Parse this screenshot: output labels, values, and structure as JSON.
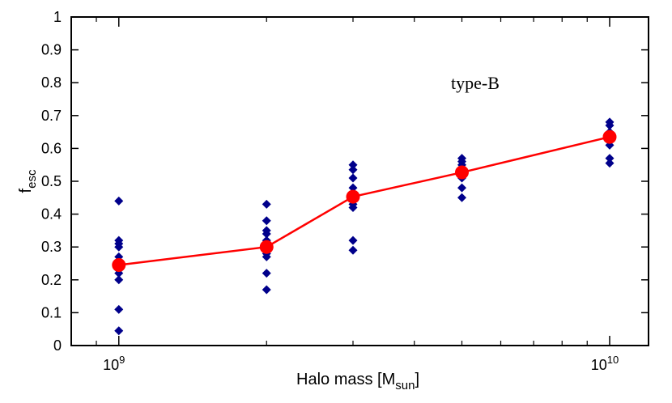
{
  "chart_data": {
    "type": "scatter",
    "title": "",
    "annotation": "type-B",
    "xlabel": {
      "main": "Halo mass [M",
      "sub": "sun",
      "close": "]"
    },
    "ylabel": {
      "main": "f",
      "sub": "esc"
    },
    "xscale": "log",
    "xlim": [
      800000000,
      12000000000
    ],
    "ylim": [
      0,
      1
    ],
    "x_ticks": [
      {
        "value": 1000000000,
        "base": "10",
        "exp": "9"
      },
      {
        "value": 10000000000,
        "base": "10",
        "exp": "10"
      }
    ],
    "y_ticks": [
      {
        "value": 0,
        "label": "0"
      },
      {
        "value": 0.1,
        "label": "0.1"
      },
      {
        "value": 0.2,
        "label": "0.2"
      },
      {
        "value": 0.3,
        "label": "0.3"
      },
      {
        "value": 0.4,
        "label": "0.4"
      },
      {
        "value": 0.5,
        "label": "0.5"
      },
      {
        "value": 0.6,
        "label": "0.6"
      },
      {
        "value": 0.7,
        "label": "0.7"
      },
      {
        "value": 0.8,
        "label": "0.8"
      },
      {
        "value": 0.9,
        "label": "0.9"
      },
      {
        "value": 1,
        "label": "1"
      }
    ],
    "grid": false,
    "legend": "none",
    "series": [
      {
        "kind": "individual",
        "marker": "diamond",
        "color": "#00008b",
        "points": [
          [
            1000000000,
            0.44
          ],
          [
            1000000000,
            0.32
          ],
          [
            1000000000,
            0.31
          ],
          [
            1000000000,
            0.3
          ],
          [
            1000000000,
            0.27
          ],
          [
            1000000000,
            0.25
          ],
          [
            1000000000,
            0.23
          ],
          [
            1000000000,
            0.22
          ],
          [
            1000000000,
            0.2
          ],
          [
            1000000000,
            0.11
          ],
          [
            1000000000,
            0.045
          ],
          [
            2000000000,
            0.43
          ],
          [
            2000000000,
            0.38
          ],
          [
            2000000000,
            0.35
          ],
          [
            2000000000,
            0.34
          ],
          [
            2000000000,
            0.32
          ],
          [
            2000000000,
            0.3
          ],
          [
            2000000000,
            0.28
          ],
          [
            2000000000,
            0.27
          ],
          [
            2000000000,
            0.22
          ],
          [
            2000000000,
            0.17
          ],
          [
            3000000000,
            0.55
          ],
          [
            3000000000,
            0.535
          ],
          [
            3000000000,
            0.51
          ],
          [
            3000000000,
            0.48
          ],
          [
            3000000000,
            0.46
          ],
          [
            3000000000,
            0.44
          ],
          [
            3000000000,
            0.43
          ],
          [
            3000000000,
            0.42
          ],
          [
            3000000000,
            0.32
          ],
          [
            3000000000,
            0.29
          ],
          [
            5000000000,
            0.57
          ],
          [
            5000000000,
            0.56
          ],
          [
            5000000000,
            0.55
          ],
          [
            5000000000,
            0.54
          ],
          [
            5000000000,
            0.53
          ],
          [
            5000000000,
            0.51
          ],
          [
            5000000000,
            0.48
          ],
          [
            5000000000,
            0.45
          ],
          [
            10000000000,
            0.68
          ],
          [
            10000000000,
            0.67
          ],
          [
            10000000000,
            0.65
          ],
          [
            10000000000,
            0.64
          ],
          [
            10000000000,
            0.63
          ],
          [
            10000000000,
            0.61
          ],
          [
            10000000000,
            0.57
          ],
          [
            10000000000,
            0.555
          ]
        ]
      },
      {
        "kind": "mean",
        "marker": "circle",
        "color": "#ff0000",
        "line": true,
        "points": [
          [
            1000000000,
            0.245
          ],
          [
            2000000000,
            0.3
          ],
          [
            3000000000,
            0.453
          ],
          [
            5000000000,
            0.527
          ],
          [
            10000000000,
            0.635
          ]
        ]
      }
    ]
  }
}
